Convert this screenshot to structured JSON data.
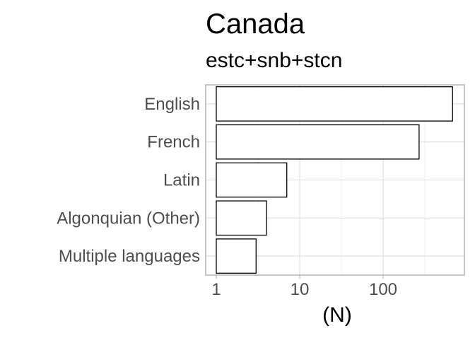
{
  "chart_data": {
    "type": "bar",
    "orientation": "horizontal",
    "title": "Canada",
    "subtitle": "estc+snb+stcn",
    "xlabel": "(N)",
    "ylabel": "",
    "x_scale": "log10",
    "xlim": [
      0.88,
      880
    ],
    "x_ticks": [
      1,
      10,
      100
    ],
    "x_tick_labels": [
      "1",
      "10",
      "100"
    ],
    "categories": [
      "English",
      "French",
      "Latin",
      "Algonquian (Other)",
      "Multiple languages"
    ],
    "values": [
      680,
      270,
      7,
      4,
      3
    ],
    "grid": true,
    "legend": "none",
    "colors": {
      "bar_fill": "#ffffff",
      "bar_stroke": "#000000",
      "grid": "#dedede",
      "border": "#b3b3b3"
    }
  }
}
